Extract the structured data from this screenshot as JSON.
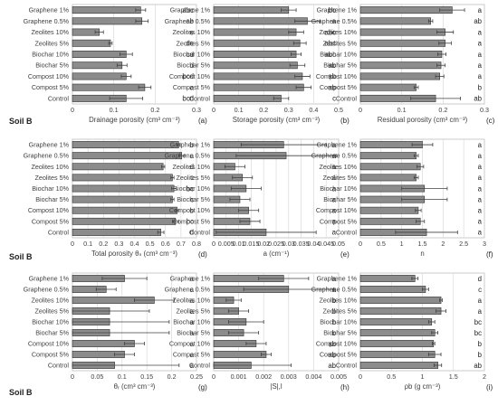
{
  "figure": {
    "row_labels": [
      "Soil B",
      "Soil B",
      "Soil B"
    ],
    "treatments": [
      "Graphene 1%",
      "Graphene 0.5%",
      "Zeolites 10%",
      "Zeolites 5%",
      "Biochar 10%",
      "Biochar 5%",
      "Compost 10%",
      "Compost 5%",
      "Control"
    ]
  },
  "colors": {
    "bar_fill": "#8c8c8c",
    "bar_stroke": "#303030",
    "error_bar": "#404040",
    "grid": "#d9d9d9",
    "axis": "#bfbfbf",
    "text": "#404040"
  },
  "chart_data": [
    {
      "id": "a",
      "type": "bar",
      "orientation": "horizontal",
      "panel_label": "(a)",
      "xlabel": "Drainage porosity (cm³ cm⁻³)",
      "xlim": [
        0,
        0.3
      ],
      "xticks": [
        0,
        0.1,
        0.2,
        0.3
      ],
      "tick_labels": [
        "0",
        "0.1",
        "0.2",
        "0.3"
      ],
      "values": [
        0.165,
        0.168,
        0.065,
        0.092,
        0.13,
        0.12,
        0.13,
        0.175,
        0.13
      ],
      "errors": [
        0.012,
        0.015,
        0.01,
        0.004,
        0.015,
        0.012,
        0.012,
        0.015,
        0.04
      ],
      "letters": [
        "abc",
        "ab",
        "e",
        "de",
        "cd",
        "d",
        "bcd",
        "a",
        "bcd"
      ]
    },
    {
      "id": "b",
      "type": "bar",
      "orientation": "horizontal",
      "panel_label": "(b)",
      "xlabel": "Storage porosity (cm³ cm⁻³)",
      "xlim": [
        0,
        0.5
      ],
      "xticks": [
        0,
        0.1,
        0.2,
        0.3,
        0.4,
        0.5
      ],
      "tick_labels": [
        "0",
        "0.1",
        "0.2",
        "0.3",
        "0.4",
        "0.5"
      ],
      "values": [
        0.3,
        0.375,
        0.33,
        0.345,
        0.33,
        0.335,
        0.355,
        0.36,
        0.27
      ],
      "errors": [
        0.03,
        0.05,
        0.03,
        0.025,
        0.02,
        0.03,
        0.03,
        0.03,
        0.03
      ],
      "letters": [
        "bc",
        "a",
        "abc",
        "abc",
        "abc",
        "ab",
        "ab",
        "ab",
        "c"
      ]
    },
    {
      "id": "c",
      "type": "bar",
      "orientation": "horizontal",
      "panel_label": "(c)",
      "xlabel": "Residual porosity (cm³ cm⁻³)",
      "xlim": [
        0,
        0.3
      ],
      "xticks": [
        0,
        0.1,
        0.2,
        0.3
      ],
      "tick_labels": [
        "0",
        "0.1",
        "0.2",
        "0.3"
      ],
      "values": [
        0.222,
        0.17,
        0.205,
        0.205,
        0.197,
        0.195,
        0.192,
        0.135,
        0.182
      ],
      "errors": [
        0.03,
        0.005,
        0.02,
        0.015,
        0.01,
        0.01,
        0.01,
        0.005,
        0.06
      ],
      "letters": [
        "a",
        "ab",
        "a",
        "a",
        "a",
        "a",
        "a",
        "b",
        "ab"
      ]
    },
    {
      "id": "d",
      "type": "bar",
      "orientation": "horizontal",
      "panel_label": "(d)",
      "xlabel": "Total porosity θₛ (cm³ cm⁻³)",
      "xlim": [
        0,
        0.8
      ],
      "xticks": [
        0,
        0.1,
        0.2,
        0.3,
        0.4,
        0.5,
        0.6,
        0.7,
        0.8
      ],
      "tick_labels": [
        "0",
        "0.1",
        "0.2",
        "0.3",
        "0.4",
        "0.5",
        "0.6",
        "0.7",
        "0.8"
      ],
      "values": [
        0.685,
        0.705,
        0.585,
        0.645,
        0.655,
        0.645,
        0.675,
        0.665,
        0.57
      ],
      "errors": [
        0.01,
        0.02,
        0.01,
        0.01,
        0.015,
        0.01,
        0.01,
        0.02,
        0.02
      ],
      "letters": [
        "b",
        "a",
        "d",
        "c",
        "bc",
        "c",
        "b",
        "bc",
        "d"
      ]
    },
    {
      "id": "e",
      "type": "bar",
      "orientation": "horizontal",
      "panel_label": "(e)",
      "xlabel": "a (cm⁻¹)",
      "xlim": [
        0,
        0.05
      ],
      "xticks": [
        0,
        0.005,
        0.01,
        0.015,
        0.02,
        0.025,
        0.03,
        0.035,
        0.04,
        0.045,
        0.05
      ],
      "tick_labels": [
        "0",
        "0.005",
        "0.01",
        "0.015",
        "0.02",
        "0.025",
        "0.03",
        "0.035",
        "0.04",
        "0.045",
        "0.05"
      ],
      "values": [
        0.028,
        0.029,
        0.0085,
        0.0115,
        0.013,
        0.0105,
        0.014,
        0.0145,
        0.021
      ],
      "errors": [
        0.017,
        0.02,
        0.004,
        0.004,
        0.006,
        0.004,
        0.004,
        0.004,
        0.02
      ],
      "letters": [
        "a",
        "a",
        "a",
        "a",
        "a",
        "a",
        "a",
        "a",
        "a"
      ]
    },
    {
      "id": "f",
      "type": "bar",
      "orientation": "horizontal",
      "panel_label": "(f)",
      "xlabel": "n",
      "xlim": [
        0,
        3
      ],
      "xticks": [
        0,
        0.5,
        1,
        1.5,
        2,
        2.5,
        3
      ],
      "tick_labels": [
        "0",
        "0.5",
        "1",
        "1.5",
        "2",
        "2.5",
        "3"
      ],
      "values": [
        1.5,
        1.35,
        1.45,
        1.35,
        1.55,
        1.55,
        1.4,
        1.45,
        1.6
      ],
      "errors": [
        0.25,
        0.05,
        0.08,
        0.05,
        0.55,
        0.55,
        0.07,
        0.1,
        0.75
      ],
      "letters": [
        "a",
        "a",
        "a",
        "a",
        "a",
        "a",
        "a",
        "a",
        "a"
      ]
    },
    {
      "id": "g",
      "type": "bar",
      "orientation": "horizontal",
      "panel_label": "(g)",
      "xlabel": "θᵣ (cm³ cm⁻³)",
      "xlim": [
        0,
        0.25
      ],
      "xticks": [
        0,
        0.05,
        0.1,
        0.15,
        0.2,
        0.25
      ],
      "tick_labels": [
        "0",
        "0.05",
        "0.1",
        "0.15",
        "0.2",
        "0.25"
      ],
      "values": [
        0.105,
        0.068,
        0.165,
        0.075,
        0.075,
        0.075,
        0.125,
        0.105,
        0.085
      ],
      "errors": [
        0.045,
        0.02,
        0.04,
        0.08,
        0.12,
        0.12,
        0.02,
        0.02,
        0.13
      ],
      "letters": [
        "a",
        "a",
        "a",
        "a",
        "a",
        "a",
        "a",
        "a",
        "a"
      ]
    },
    {
      "id": "h",
      "type": "bar",
      "orientation": "horizontal",
      "panel_label": "(h)",
      "xlabel": "|S|,l",
      "xlim": [
        0,
        0.005
      ],
      "xticks": [
        0,
        0.001,
        0.002,
        0.003,
        0.004,
        0.005
      ],
      "tick_labels": [
        "0",
        "0.001",
        "0.002",
        "0.003",
        "0.004",
        "0.005"
      ],
      "values": [
        0.0028,
        0.003,
        0.0008,
        0.001,
        0.0013,
        0.0012,
        0.0017,
        0.0021,
        0.0015
      ],
      "errors": [
        0.001,
        0.0018,
        0.0003,
        0.0004,
        0.0007,
        0.0006,
        0.0004,
        0.0002,
        0.0016
      ],
      "letters": [
        "a",
        "a",
        "b",
        "b",
        "b",
        "b",
        "ab",
        "ab",
        "ab"
      ]
    },
    {
      "id": "i",
      "type": "bar",
      "orientation": "horizontal",
      "panel_label": "(i)",
      "xlabel": "ρb (g cm⁻³)",
      "xlim": [
        0,
        2
      ],
      "xticks": [
        0,
        0.5,
        1,
        1.5,
        2
      ],
      "tick_labels": [
        "0",
        "0.5",
        "1",
        "1.5",
        "2"
      ],
      "values": [
        0.88,
        1.05,
        1.3,
        1.3,
        1.15,
        1.2,
        1.18,
        1.2,
        1.25
      ],
      "errors": [
        0.05,
        0.05,
        0.02,
        0.08,
        0.05,
        0.05,
        0.02,
        0.1,
        0.06
      ],
      "letters": [
        "d",
        "c",
        "a",
        "a",
        "bc",
        "bc",
        "b",
        "b",
        "ab"
      ]
    }
  ]
}
